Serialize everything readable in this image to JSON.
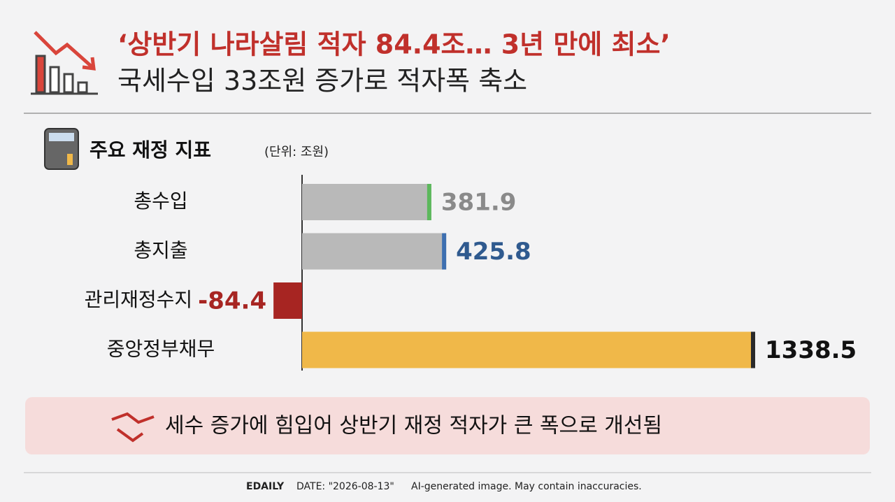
{
  "header": {
    "title": "‘상반기 나라살림 적자 84.4조… 3년 만에 최소’",
    "subtitle": "국세수입 33조원 증가로 적자폭 축소"
  },
  "chart_data": {
    "type": "hbar",
    "title": "주요 재정 지표",
    "unit": "(단위: 조원)",
    "categories": [
      "총수입",
      "총지출",
      "관리재정수지",
      "중앙정부채무"
    ],
    "values": [
      381.9,
      425.8,
      -84.4,
      1338.5
    ],
    "colors": [
      "#b9b9b9",
      "#b9b9b9",
      "#a72522",
      "#f0b849"
    ],
    "accent_colors": [
      "#5cb85c",
      "#3d6fb0",
      "#a72522",
      "#2a2a2a"
    ],
    "label_colors": [
      "#8a8a8a",
      "#2f5a8f",
      "#a72522",
      "#111111"
    ]
  },
  "note": "세수 증가에 힘입어 상반기 재정 적자가 큰 폭으로 개선됨",
  "footer": {
    "source": "EDAILY",
    "date": "DATE: \"2026-08-13\"",
    "disclaimer": "AI-generated image. May contain inaccuracies."
  }
}
